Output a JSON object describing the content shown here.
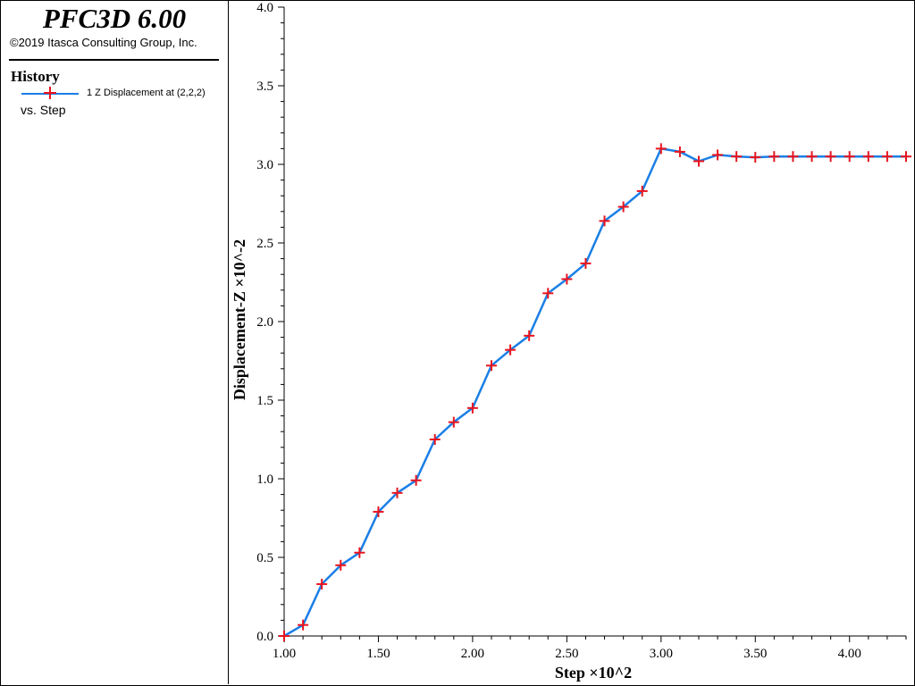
{
  "header": {
    "app_title": "PFC3D 6.00",
    "copyright": "©2019 Itasca Consulting Group, Inc."
  },
  "legend": {
    "heading": "History",
    "entry_label": "1 Z Displacement at (2,2,2)",
    "vs_label": "vs. Step"
  },
  "colors": {
    "line": "#1a7fe6",
    "marker": "#e8141e"
  },
  "chart_data": {
    "type": "line",
    "xlabel": "Step ×10^2",
    "ylabel": "Displacement-Z ×10^-2",
    "xlim": [
      1.0,
      4.3
    ],
    "ylim": [
      0.0,
      4.0
    ],
    "x_ticks": [
      "1.00",
      "1.50",
      "2.00",
      "2.50",
      "3.00",
      "3.50",
      "4.00"
    ],
    "x_tick_values": [
      1.0,
      1.5,
      2.0,
      2.5,
      3.0,
      3.5,
      4.0
    ],
    "y_ticks": [
      "0.0",
      "0.5",
      "1.0",
      "1.5",
      "2.0",
      "2.5",
      "3.0",
      "3.5",
      "4.0"
    ],
    "y_tick_values": [
      0.0,
      0.5,
      1.0,
      1.5,
      2.0,
      2.5,
      3.0,
      3.5,
      4.0
    ],
    "series": [
      {
        "name": "1 Z Displacement at (2,2,2)",
        "x": [
          1.0,
          1.1,
          1.2,
          1.3,
          1.4,
          1.5,
          1.6,
          1.7,
          1.8,
          1.9,
          2.0,
          2.1,
          2.2,
          2.3,
          2.4,
          2.5,
          2.6,
          2.7,
          2.8,
          2.9,
          3.0,
          3.1,
          3.2,
          3.3,
          3.4,
          3.5,
          3.6,
          3.7,
          3.8,
          3.9,
          4.0,
          4.1,
          4.2,
          4.3
        ],
        "y": [
          0.0,
          0.07,
          0.33,
          0.45,
          0.53,
          0.79,
          0.91,
          0.99,
          1.25,
          1.36,
          1.45,
          1.72,
          1.82,
          1.91,
          2.18,
          2.27,
          2.37,
          2.64,
          2.73,
          2.83,
          3.1,
          3.08,
          3.02,
          3.06,
          3.05,
          3.045,
          3.05,
          3.05,
          3.05,
          3.05,
          3.05,
          3.05,
          3.05,
          3.05
        ]
      }
    ]
  }
}
